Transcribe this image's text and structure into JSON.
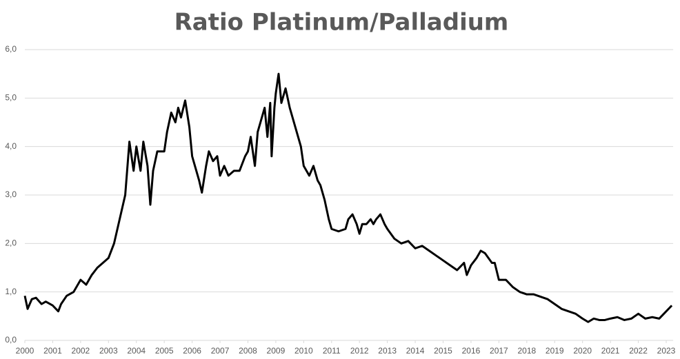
{
  "chart_data": {
    "type": "line",
    "title": "Ratio Platinum/Palladium",
    "x": [
      2000.0,
      2000.1,
      2000.25,
      2000.4,
      2000.6,
      2000.75,
      2001.0,
      2001.2,
      2001.3,
      2001.5,
      2001.75,
      2002.0,
      2002.2,
      2002.4,
      2002.6,
      2002.8,
      2003.0,
      2003.2,
      2003.4,
      2003.6,
      2003.75,
      2003.9,
      2004.0,
      2004.15,
      2004.25,
      2004.4,
      2004.5,
      2004.6,
      2004.75,
      2005.0,
      2005.1,
      2005.25,
      2005.4,
      2005.5,
      2005.6,
      2005.75,
      2005.9,
      2006.0,
      2006.1,
      2006.25,
      2006.35,
      2006.5,
      2006.6,
      2006.75,
      2006.9,
      2007.0,
      2007.15,
      2007.3,
      2007.5,
      2007.7,
      2007.9,
      2008.0,
      2008.1,
      2008.25,
      2008.35,
      2008.5,
      2008.6,
      2008.7,
      2008.8,
      2008.85,
      2008.95,
      2009.0,
      2009.1,
      2009.2,
      2009.35,
      2009.5,
      2009.6,
      2009.75,
      2009.9,
      2010.0,
      2010.2,
      2010.35,
      2010.5,
      2010.6,
      2010.75,
      2010.9,
      2011.0,
      2011.25,
      2011.5,
      2011.6,
      2011.75,
      2011.9,
      2012.0,
      2012.1,
      2012.25,
      2012.4,
      2012.5,
      2012.6,
      2012.75,
      2012.9,
      2013.0,
      2013.25,
      2013.5,
      2013.75,
      2014.0,
      2014.25,
      2014.5,
      2014.75,
      2015.0,
      2015.25,
      2015.5,
      2015.75,
      2015.85,
      2016.0,
      2016.2,
      2016.35,
      2016.5,
      2016.75,
      2016.85,
      2017.0,
      2017.25,
      2017.5,
      2017.75,
      2018.0,
      2018.25,
      2018.5,
      2018.75,
      2019.0,
      2019.25,
      2019.5,
      2019.75,
      2020.0,
      2020.2,
      2020.4,
      2020.6,
      2020.8,
      2021.0,
      2021.25,
      2021.5,
      2021.75,
      2022.0,
      2022.25,
      2022.5,
      2022.75,
      2023.0,
      2023.2
    ],
    "series": [
      {
        "name": "Ratio Platinum/Palladium",
        "color": "#000000",
        "values": [
          0.92,
          0.65,
          0.85,
          0.88,
          0.75,
          0.8,
          0.72,
          0.6,
          0.75,
          0.92,
          1.0,
          1.25,
          1.15,
          1.35,
          1.5,
          1.6,
          1.7,
          2.0,
          2.5,
          3.0,
          4.1,
          3.5,
          4.0,
          3.5,
          4.1,
          3.6,
          2.8,
          3.5,
          3.9,
          3.9,
          4.3,
          4.7,
          4.5,
          4.8,
          4.6,
          4.95,
          4.4,
          3.8,
          3.6,
          3.3,
          3.05,
          3.6,
          3.9,
          3.7,
          3.8,
          3.4,
          3.6,
          3.4,
          3.5,
          3.5,
          3.8,
          3.9,
          4.2,
          3.6,
          4.3,
          4.6,
          4.8,
          4.2,
          4.9,
          3.8,
          4.8,
          5.1,
          5.5,
          4.9,
          5.2,
          4.8,
          4.6,
          4.3,
          4.0,
          3.6,
          3.4,
          3.6,
          3.3,
          3.2,
          2.9,
          2.5,
          2.3,
          2.25,
          2.3,
          2.5,
          2.6,
          2.4,
          2.2,
          2.4,
          2.4,
          2.5,
          2.4,
          2.5,
          2.6,
          2.4,
          2.3,
          2.1,
          2.0,
          2.05,
          1.9,
          1.95,
          1.85,
          1.75,
          1.65,
          1.55,
          1.45,
          1.6,
          1.35,
          1.55,
          1.7,
          1.85,
          1.8,
          1.6,
          1.6,
          1.25,
          1.25,
          1.1,
          1.0,
          0.95,
          0.95,
          0.9,
          0.85,
          0.75,
          0.65,
          0.6,
          0.55,
          0.45,
          0.38,
          0.45,
          0.42,
          0.42,
          0.45,
          0.48,
          0.42,
          0.45,
          0.55,
          0.45,
          0.48,
          0.45,
          0.6,
          0.72
        ]
      }
    ],
    "xlim": [
      2000,
      2023.25
    ],
    "xticks": [
      2000,
      2001,
      2002,
      2003,
      2004,
      2005,
      2006,
      2007,
      2008,
      2009,
      2010,
      2011,
      2012,
      2013,
      2014,
      2015,
      2016,
      2017,
      2018,
      2019,
      2020,
      2021,
      2022,
      2023
    ],
    "ylim": [
      0,
      6
    ],
    "yticks": [
      {
        "value": 0,
        "label": "0,0"
      },
      {
        "value": 1,
        "label": "1,0"
      },
      {
        "value": 2,
        "label": "2,0"
      },
      {
        "value": 3,
        "label": "3,0"
      },
      {
        "value": 4,
        "label": "4,0"
      },
      {
        "value": 5,
        "label": "5,0"
      },
      {
        "value": 6,
        "label": "6,0"
      }
    ],
    "grid": true
  }
}
